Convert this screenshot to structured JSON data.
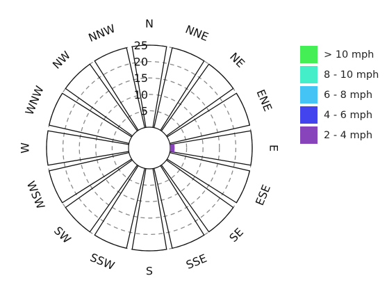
{
  "chart_data": {
    "type": "polar-bar",
    "title": "",
    "directions": [
      "N",
      "NNE",
      "NE",
      "ENE",
      "E",
      "ESE",
      "SE",
      "SSE",
      "S",
      "SSW",
      "SW",
      "WSW",
      "W",
      "WNW",
      "NW",
      "NNW"
    ],
    "radial_ticks": [
      5,
      10,
      15,
      20,
      25
    ],
    "radial_range": [
      0,
      25
    ],
    "series": [
      {
        "name": "> 10 mph",
        "color": "#44ee55",
        "values": [
          0,
          0,
          0,
          0,
          0,
          0,
          0,
          0,
          0,
          0,
          0,
          0,
          0,
          0,
          0,
          0
        ]
      },
      {
        "name": "8 - 10 mph",
        "color": "#44eec8",
        "values": [
          0,
          0,
          0,
          0,
          0,
          0,
          0,
          0,
          0,
          0,
          0,
          0,
          0,
          0,
          0,
          0
        ]
      },
      {
        "name": "6 - 8 mph",
        "color": "#44c4f4",
        "values": [
          0,
          0,
          0,
          0,
          0,
          0,
          0,
          0,
          0,
          0,
          0,
          0,
          0,
          0,
          0,
          0
        ]
      },
      {
        "name": "4 - 6 mph",
        "color": "#4444ee",
        "values": [
          0,
          0,
          0,
          0,
          0,
          0,
          0,
          0,
          0,
          0,
          0,
          0,
          0,
          0,
          0,
          0
        ]
      },
      {
        "name": "2 - 4 mph",
        "color": "#8844bb",
        "values": [
          0,
          0,
          0,
          0,
          0.5,
          0,
          0,
          0,
          0,
          0,
          0,
          0,
          0,
          0,
          0,
          0
        ]
      }
    ],
    "grid": true,
    "grid_style": "dashed",
    "legend_position": "right"
  }
}
